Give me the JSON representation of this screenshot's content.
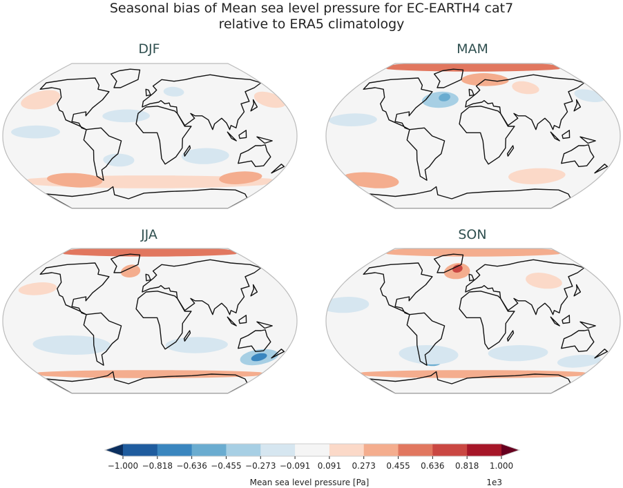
{
  "figure": {
    "title_line1": "Seasonal bias of Mean sea level pressure for EC-EARTH4 cat7",
    "title_line2": "relative to ERA5 climatology"
  },
  "panels": [
    {
      "title": "DJF",
      "anomalies": [
        {
          "lon": -150,
          "lat": 45,
          "rlon": 25,
          "rlat": 12,
          "value": 150
        },
        {
          "lon": 165,
          "lat": 45,
          "rlon": 20,
          "rlat": 10,
          "value": 150
        },
        {
          "lon": 0,
          "lat": -57,
          "rlon": 200,
          "rlat": 8,
          "value": 200
        },
        {
          "lon": -110,
          "lat": -55,
          "rlon": 40,
          "rlat": 9,
          "value": 450
        },
        {
          "lon": 130,
          "lat": -52,
          "rlon": 30,
          "rlat": 8,
          "value": 400
        },
        {
          "lon": -30,
          "lat": 25,
          "rlon": 30,
          "rlat": 8,
          "value": -150
        },
        {
          "lon": -140,
          "lat": 5,
          "rlon": 30,
          "rlat": 8,
          "value": -150
        },
        {
          "lon": 70,
          "lat": -25,
          "rlon": 30,
          "rlat": 10,
          "value": -150
        },
        {
          "lon": -40,
          "lat": -30,
          "rlon": 20,
          "rlat": 8,
          "value": -150
        },
        {
          "lon": 35,
          "lat": 55,
          "rlon": 15,
          "rlat": 6,
          "value": -150
        }
      ]
    },
    {
      "title": "MAM",
      "anomalies": [
        {
          "lon": 0,
          "lat": 86,
          "rlon": 200,
          "rlat": 6,
          "value": 500
        },
        {
          "lon": 20,
          "lat": 70,
          "rlon": 40,
          "rlat": 8,
          "value": 300
        },
        {
          "lon": -45,
          "lat": 45,
          "rlon": 25,
          "rlat": 10,
          "value": -300
        },
        {
          "lon": -40,
          "lat": 48,
          "rlon": 8,
          "rlat": 5,
          "value": -500
        },
        {
          "lon": 165,
          "lat": 50,
          "rlon": 20,
          "rlat": 8,
          "value": -200
        },
        {
          "lon": -150,
          "lat": -55,
          "rlon": 40,
          "rlat": 10,
          "value": 300
        },
        {
          "lon": 90,
          "lat": -50,
          "rlon": 40,
          "rlat": 10,
          "value": 250
        },
        {
          "lon": 80,
          "lat": 60,
          "rlon": 20,
          "rlat": 8,
          "value": 200
        },
        {
          "lon": -150,
          "lat": 20,
          "rlon": 30,
          "rlat": 8,
          "value": -150
        }
      ]
    },
    {
      "title": "JJA",
      "anomalies": [
        {
          "lon": 0,
          "lat": 86,
          "rlon": 200,
          "rlat": 6,
          "value": 500
        },
        {
          "lon": -30,
          "lat": 62,
          "rlon": 15,
          "rlat": 8,
          "value": 350
        },
        {
          "lon": 150,
          "lat": -45,
          "rlon": 25,
          "rlat": 10,
          "value": -400
        },
        {
          "lon": 150,
          "lat": -45,
          "rlon": 10,
          "rlat": 5,
          "value": -700
        },
        {
          "lon": -100,
          "lat": -30,
          "rlon": 50,
          "rlat": 12,
          "value": -200
        },
        {
          "lon": 60,
          "lat": -30,
          "rlon": 40,
          "rlat": 10,
          "value": -200
        },
        {
          "lon": -150,
          "lat": 40,
          "rlon": 25,
          "rlat": 8,
          "value": 200
        },
        {
          "lon": 0,
          "lat": -66,
          "rlon": 200,
          "rlat": 5,
          "value": 300
        }
      ]
    },
    {
      "title": "SON",
      "anomalies": [
        {
          "lon": 0,
          "lat": 86,
          "rlon": 200,
          "rlat": 6,
          "value": 400
        },
        {
          "lon": -25,
          "lat": 62,
          "rlon": 20,
          "rlat": 10,
          "value": 450
        },
        {
          "lon": -25,
          "lat": 65,
          "rlon": 8,
          "rlat": 5,
          "value": 650
        },
        {
          "lon": -60,
          "lat": -50,
          "rlon": 15,
          "rlat": 6,
          "value": -500
        },
        {
          "lon": -60,
          "lat": -42,
          "rlon": 40,
          "rlat": 12,
          "value": -250
        },
        {
          "lon": 60,
          "lat": -40,
          "rlon": 40,
          "rlat": 10,
          "value": -200
        },
        {
          "lon": 100,
          "lat": 50,
          "rlon": 25,
          "rlat": 10,
          "value": 200
        },
        {
          "lon": -160,
          "lat": 20,
          "rlon": 30,
          "rlat": 10,
          "value": -150
        },
        {
          "lon": 150,
          "lat": -50,
          "rlon": 30,
          "rlat": 8,
          "value": -200
        },
        {
          "lon": 0,
          "lat": -66,
          "rlon": 200,
          "rlat": 5,
          "value": 300
        }
      ]
    }
  ],
  "colorbar": {
    "label": "Mean sea level pressure [Pa]",
    "multiplier": "1e3",
    "ticks": [
      "−1.000",
      "−0.818",
      "−0.636",
      "−0.455",
      "−0.273",
      "−0.091",
      "0.091",
      "0.273",
      "0.455",
      "0.636",
      "0.818",
      "1.000"
    ],
    "levels": [
      -1000,
      -818,
      -636,
      -455,
      -273,
      -91,
      91,
      273,
      455,
      636,
      818,
      1000
    ],
    "colors": [
      "#1f5c9e",
      "#3a86bf",
      "#6aacd0",
      "#a7cfe4",
      "#d6e6f0",
      "#f5f5f5",
      "#fbd9c8",
      "#f4ad8e",
      "#e1775f",
      "#ca4742",
      "#a61628"
    ],
    "under_color": "#0b2f5f",
    "over_color": "#67001f",
    "extend": "both"
  }
}
